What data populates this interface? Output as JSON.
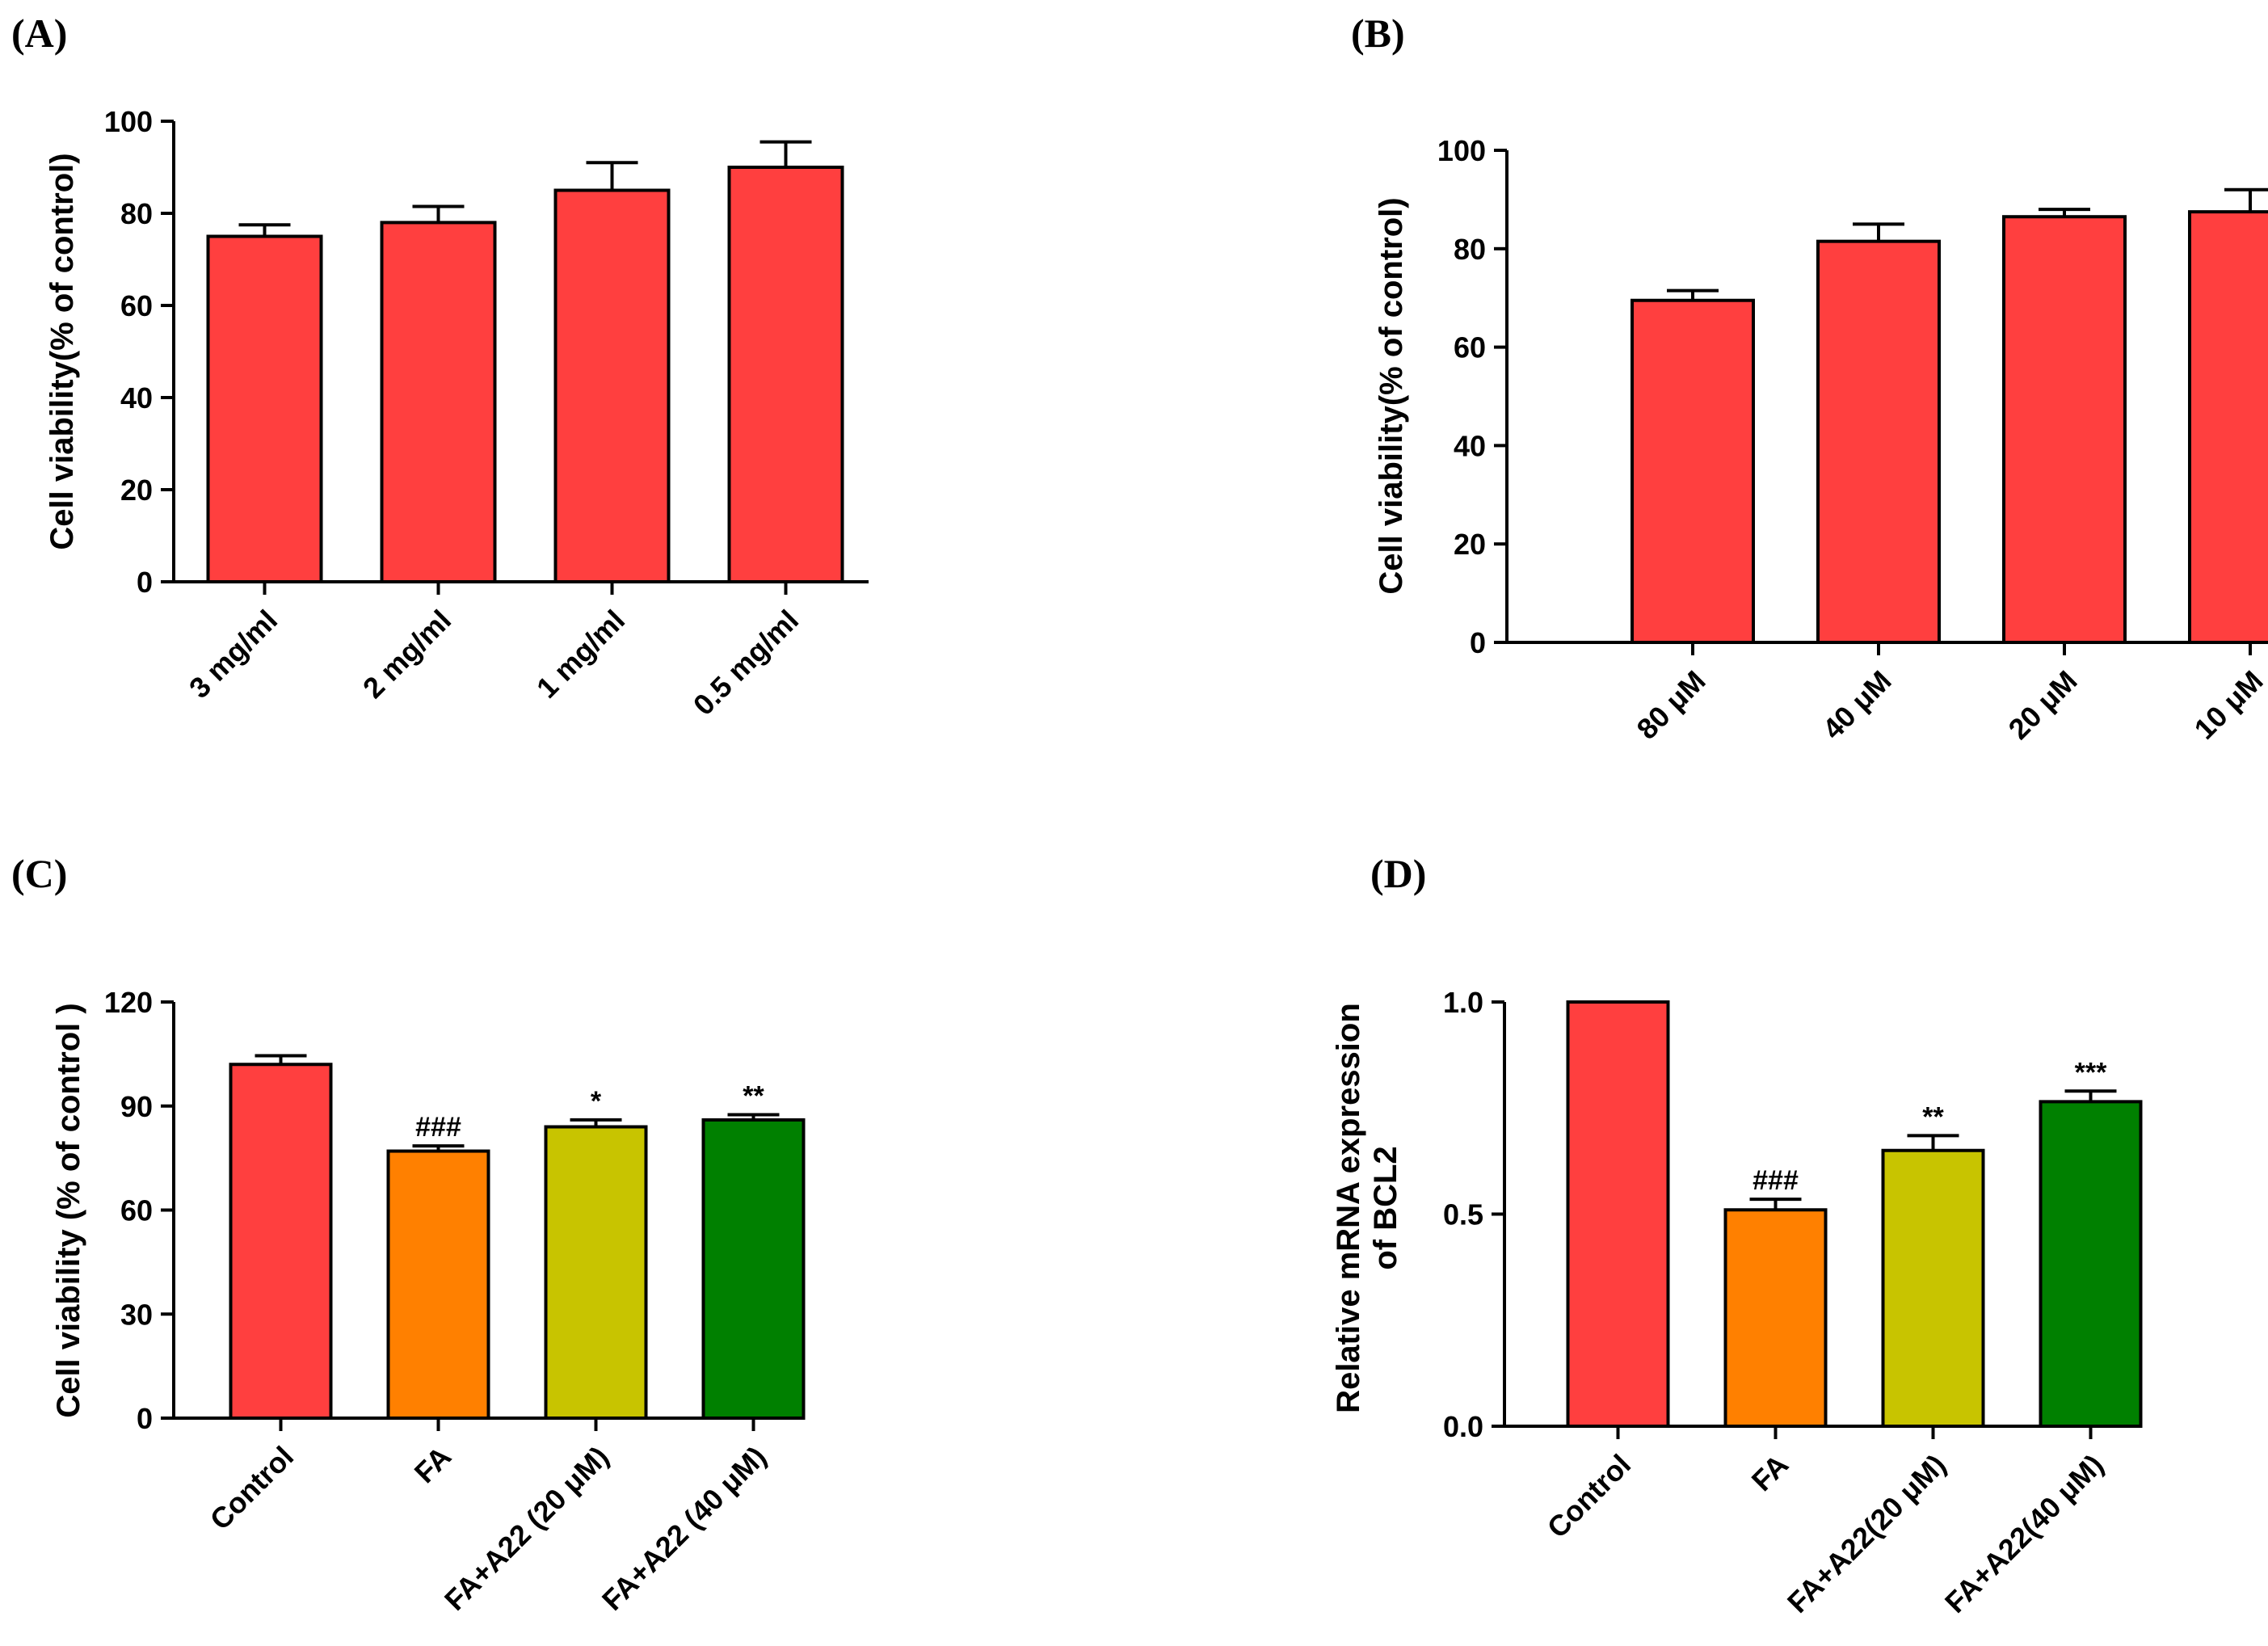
{
  "chart_data": [
    {
      "panel": "(A)",
      "type": "bar",
      "categories": [
        "3 mg/ml",
        "2 mg/ml",
        "1 mg/ml",
        "0.5 mg/ml"
      ],
      "values": [
        75,
        78,
        85,
        90
      ],
      "errors": [
        2.5,
        3.5,
        6,
        5.5
      ],
      "annotations": [
        "",
        "",
        "",
        ""
      ],
      "colors": [
        "#ff3f3f",
        "#ff3f3f",
        "#ff3f3f",
        "#ff3f3f"
      ],
      "ylabel": "Cell viability(% of control)",
      "xlabel": "",
      "ylim": [
        0,
        100
      ],
      "yticks": [
        0,
        20,
        40,
        60,
        80,
        100
      ],
      "ytick_labels": [
        "0",
        "20",
        "40",
        "60",
        "80",
        "100"
      ],
      "grid": false
    },
    {
      "panel": "(B)",
      "type": "bar",
      "categories": [
        "80 μM",
        "40 μM",
        "20 μM",
        "10 μM"
      ],
      "values": [
        69.5,
        81.5,
        86.5,
        87.5
      ],
      "errors": [
        2,
        3.5,
        1.5,
        4.5
      ],
      "annotations": [
        "",
        "",
        "",
        ""
      ],
      "colors": [
        "#ff3f3f",
        "#ff3f3f",
        "#ff3f3f",
        "#ff3f3f"
      ],
      "ylabel": "Cell viability(% of control)",
      "xlabel": "",
      "ylim": [
        0,
        100
      ],
      "yticks": [
        0,
        20,
        40,
        60,
        80,
        100
      ],
      "ytick_labels": [
        "0",
        "20",
        "40",
        "60",
        "80",
        "100"
      ],
      "grid": false
    },
    {
      "panel": "(C)",
      "type": "bar",
      "categories": [
        "Control",
        "FA",
        "FA+A22 (20 μM)",
        "FA+A22 (40 μM)"
      ],
      "values": [
        102,
        77,
        84,
        86
      ],
      "errors": [
        2.5,
        1.5,
        2,
        1.5
      ],
      "annotations": [
        "",
        "###",
        "*",
        "**"
      ],
      "colors": [
        "#ff3f3f",
        "#ff8000",
        "#c8c400",
        "#008000"
      ],
      "ylabel": "Cell viability (% of control )",
      "xlabel": "",
      "ylim": [
        0,
        120
      ],
      "yticks": [
        0,
        30,
        60,
        90,
        120
      ],
      "ytick_labels": [
        "0",
        "30",
        "60",
        "90",
        "120"
      ],
      "grid": false
    },
    {
      "panel": "(D)",
      "type": "bar",
      "categories": [
        "Control",
        "FA",
        "FA+A22(20 μM)",
        "FA+A22(40 μM)"
      ],
      "values": [
        1.0,
        0.51,
        0.65,
        0.765
      ],
      "errors": [
        0,
        0.025,
        0.035,
        0.025
      ],
      "annotations": [
        "",
        "###",
        "**",
        "***"
      ],
      "colors": [
        "#ff3f3f",
        "#ff8000",
        "#c8c400",
        "#008000"
      ],
      "ylabel_lines": [
        "Relative mRNA expression",
        "of BCL2"
      ],
      "xlabel": "",
      "ylim": [
        0,
        1.0
      ],
      "yticks": [
        0,
        0.5,
        1.0
      ],
      "ytick_labels": [
        "0.0",
        "0.5",
        "1.0"
      ],
      "grid": false
    }
  ]
}
